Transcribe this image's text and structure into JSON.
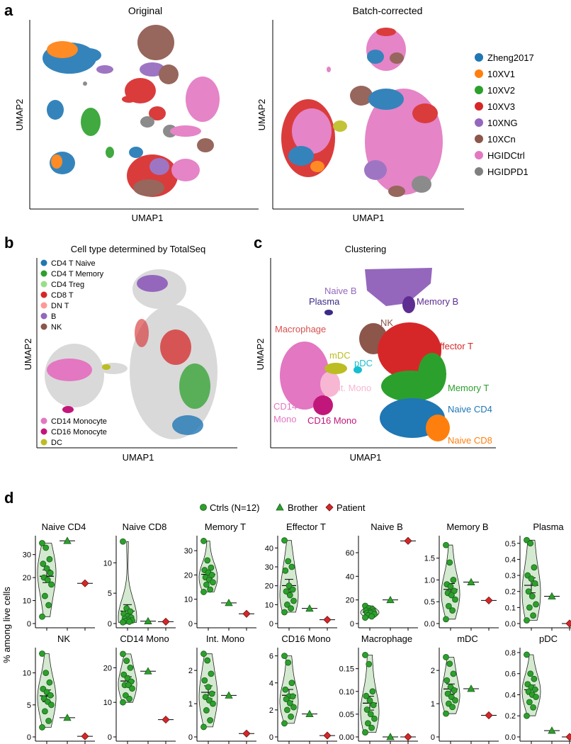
{
  "panel_a": {
    "label": "a",
    "left_title": "Original",
    "right_title": "Batch-corrected",
    "xlabel": "UMAP1",
    "ylabel": "UMAP2",
    "legend": [
      {
        "name": "Zheng2017",
        "color": "#1f77b4"
      },
      {
        "name": "10XV1",
        "color": "#ff7f0e"
      },
      {
        "name": "10XV2",
        "color": "#2ca02c"
      },
      {
        "name": "10XV3",
        "color": "#d62728"
      },
      {
        "name": "10XNG",
        "color": "#9467bd"
      },
      {
        "name": "10XCn",
        "color": "#8c564b"
      },
      {
        "name": "HGIDCtrl",
        "color": "#e377c2"
      },
      {
        "name": "HGIDPD1",
        "color": "#7f7f7f"
      }
    ]
  },
  "panel_b": {
    "label": "b",
    "title": "Cell type determined by TotalSeq",
    "xlabel": "UMAP1",
    "ylabel": "UMAP2",
    "legend_top": [
      {
        "name": "CD4 T Naive",
        "color": "#1f77b4"
      },
      {
        "name": "CD4 T Memory",
        "color": "#2ca02c"
      },
      {
        "name": "CD4 Treg",
        "color": "#98df8a"
      },
      {
        "name": "CD8 T",
        "color": "#d62728"
      },
      {
        "name": "DN T",
        "color": "#ff9896"
      },
      {
        "name": "B",
        "color": "#9467bd"
      },
      {
        "name": "NK",
        "color": "#8c564b"
      }
    ],
    "legend_bottom": [
      {
        "name": "CD14 Monocyte",
        "color": "#e377c2"
      },
      {
        "name": "CD16 Monocyte",
        "color": "#c2177a"
      },
      {
        "name": "DC",
        "color": "#bcbd22"
      }
    ]
  },
  "panel_c": {
    "label": "c",
    "title": "Clustering",
    "xlabel": "UMAP1",
    "ylabel": "UMAP2",
    "clusters": [
      {
        "name": "Naive B",
        "color": "#9467bd"
      },
      {
        "name": "Memory B",
        "color": "#5e2d91"
      },
      {
        "name": "Plasma",
        "color": "#3b2a86"
      },
      {
        "name": "NK",
        "color": "#8c564b"
      },
      {
        "name": "Macrophage",
        "color": "#d94f4f"
      },
      {
        "name": "mDC",
        "color": "#bcbd22"
      },
      {
        "name": "pDC",
        "color": "#17becf"
      },
      {
        "name": "Effector T",
        "color": "#d62728"
      },
      {
        "name": "Int. Mono",
        "color": "#f7b6d2"
      },
      {
        "name": "Memory T",
        "color": "#2ca02c"
      },
      {
        "name": "CD14",
        "color": "#e377c2"
      },
      {
        "name": "Mono",
        "color": "#e377c2"
      },
      {
        "name": "CD16 Mono",
        "color": "#c2177a"
      },
      {
        "name": "Naive CD4",
        "color": "#1f77b4"
      },
      {
        "name": "Naive CD8",
        "color": "#ff7f0e"
      }
    ]
  },
  "panel_d": {
    "label": "d",
    "ylabel": "% among live cells",
    "legend": [
      "Ctrls (N=12)",
      "Brother",
      "Patient"
    ],
    "colors": {
      "ctrl": "#2ca02c",
      "violin": "#d4ead0",
      "brother": "#2ca02c",
      "patient": "#d62728"
    }
  },
  "chart_data": [
    {
      "type": "scatter",
      "title": "Naive CD4",
      "ylim": [
        0,
        37
      ],
      "yticks": [
        0,
        10,
        20,
        30
      ],
      "ctrls": [
        35,
        33,
        28,
        26,
        24,
        22,
        20,
        19,
        17,
        12,
        8,
        3
      ],
      "brother": 36,
      "patient": 17.5
    },
    {
      "type": "scatter",
      "title": "Naive CD8",
      "ylim": [
        0,
        14
      ],
      "yticks": [
        0,
        5,
        10
      ],
      "ctrls": [
        13.5,
        2.5,
        2,
        1.6,
        1.2,
        1,
        0.8,
        0.6,
        0.5,
        0.4,
        0.3,
        0.2
      ],
      "brother": 0.4,
      "patient": 0.3
    },
    {
      "type": "scatter",
      "title": "Memory T",
      "ylim": [
        0,
        35
      ],
      "yticks": [
        0,
        10,
        20,
        30
      ],
      "ctrls": [
        34,
        26,
        23,
        22,
        21,
        20,
        19,
        18,
        17,
        16,
        14,
        13
      ],
      "brother": 8.5,
      "patient": 4
    },
    {
      "type": "scatter",
      "title": "Effector T",
      "ylim": [
        0,
        45
      ],
      "yticks": [
        0,
        10,
        20,
        30,
        40
      ],
      "ctrls": [
        44,
        33,
        30,
        28,
        20,
        18,
        17,
        15,
        12,
        10,
        8,
        6
      ],
      "brother": 8,
      "patient": 2
    },
    {
      "type": "scatter",
      "title": "Naive B",
      "ylim": [
        0,
        72
      ],
      "yticks": [
        0,
        20,
        40,
        60
      ],
      "ctrls": [
        15,
        13,
        12,
        11,
        10,
        10,
        9,
        9,
        8,
        7,
        6,
        5
      ],
      "brother": 20,
      "patient": 70
    },
    {
      "type": "scatter",
      "title": "Memory B",
      "ylim": [
        0,
        1.95
      ],
      "yticks": [
        0,
        0.5,
        1.0,
        1.5
      ],
      "ctrls": [
        1.8,
        1.4,
        1.0,
        0.9,
        0.85,
        0.75,
        0.7,
        0.65,
        0.55,
        0.4,
        0.3,
        0.1
      ],
      "brother": 0.95,
      "patient": 0.53
    },
    {
      "type": "scatter",
      "title": "Plasma",
      "ylim": [
        0,
        0.53
      ],
      "yticks": [
        0.0,
        0.1,
        0.2,
        0.3,
        0.4,
        0.5
      ],
      "ctrls": [
        0.52,
        0.5,
        0.35,
        0.3,
        0.28,
        0.25,
        0.2,
        0.17,
        0.12,
        0.1,
        0.05,
        0.02
      ],
      "brother": 0.17,
      "patient": 0.0
    },
    {
      "type": "scatter",
      "title": "NK",
      "ylim": [
        0,
        13.5
      ],
      "yticks": [
        0,
        5,
        10
      ],
      "ctrls": [
        13,
        10,
        8.5,
        7.5,
        7,
        6.5,
        6,
        5.5,
        5,
        4,
        2.5,
        1.5
      ],
      "brother": 3,
      "patient": 0.1
    },
    {
      "type": "scatter",
      "title": "CD14 Mono",
      "ylim": [
        0,
        25
      ],
      "yticks": [
        0,
        10,
        20
      ],
      "ctrls": [
        24,
        22,
        20,
        18,
        17,
        16,
        15,
        15,
        14,
        12,
        11,
        10
      ],
      "brother": 19,
      "patient": 5
    },
    {
      "type": "scatter",
      "title": "Int. Mono",
      "ylim": [
        0,
        2.6
      ],
      "yticks": [
        0,
        1,
        2
      ],
      "ctrls": [
        2.5,
        2.3,
        1.9,
        1.7,
        1.5,
        1.3,
        1.2,
        1.1,
        1.0,
        0.8,
        0.5,
        0.3
      ],
      "brother": 1.25,
      "patient": 0.1
    },
    {
      "type": "scatter",
      "title": "CD16 Mono",
      "ylim": [
        0,
        6.4
      ],
      "yticks": [
        0,
        2,
        4,
        6
      ],
      "ctrls": [
        6,
        5.5,
        4,
        3.5,
        3,
        3,
        2.8,
        2.5,
        2.2,
        2,
        1.5,
        1
      ],
      "brother": 1.7,
      "patient": 0.1
    },
    {
      "type": "scatter",
      "title": "Macrophage",
      "ylim": [
        0,
        0.19
      ],
      "yticks": [
        0.0,
        0.05,
        0.1,
        0.15
      ],
      "ctrls": [
        0.18,
        0.16,
        0.1,
        0.09,
        0.08,
        0.07,
        0.06,
        0.05,
        0.04,
        0.03,
        0.02,
        0.01
      ],
      "brother": 0.0,
      "patient": 0.0
    },
    {
      "type": "scatter",
      "title": "mDC",
      "ylim": [
        0,
        2.6
      ],
      "yticks": [
        0,
        1,
        2
      ],
      "ctrls": [
        2.4,
        2.2,
        1.9,
        1.7,
        1.5,
        1.4,
        1.3,
        1.2,
        1.1,
        1.0,
        0.9,
        0.7
      ],
      "brother": 1.45,
      "patient": 0.65
    },
    {
      "type": "scatter",
      "title": "pDC",
      "ylim": [
        0,
        0.82
      ],
      "yticks": [
        0.0,
        0.2,
        0.4,
        0.6,
        0.8
      ],
      "ctrls": [
        0.78,
        0.6,
        0.55,
        0.5,
        0.47,
        0.45,
        0.43,
        0.4,
        0.38,
        0.33,
        0.28,
        0.2
      ],
      "brother": 0.06,
      "patient": 0.0
    }
  ]
}
